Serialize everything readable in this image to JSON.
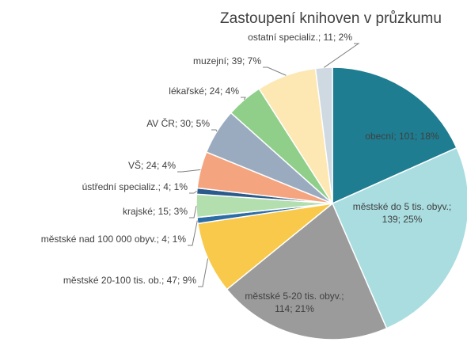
{
  "chart_data": {
    "type": "pie",
    "title": "Zastoupení knihoven v průzkumu",
    "values": [
      101,
      139,
      114,
      47,
      4,
      15,
      4,
      24,
      30,
      24,
      39,
      11
    ],
    "value_labels": [
      "obecní; 101; 18%",
      "městské do 5 tis. obyv.; 139; 25%",
      "městské 5-20 tis. obyv.; 114; 21%",
      "městské 20-100 tis. ob.; 47; 9%",
      "městské nad 100 000 obyv.; 4; 1%",
      "krajské; 15; 3%",
      "ústřední specializ.; 4; 1%",
      "VŠ; 24; 4%",
      "AV ČR; 30; 5%",
      "lékařské; 24; 4%",
      "muzejní; 39; 7%",
      "ostatní specializ.; 11; 2%"
    ],
    "colors": [
      "#1e7d91",
      "#a9dde0",
      "#9b9b9b",
      "#f8c94a",
      "#2e6ea6",
      "#b3deae",
      "#2b5b8c",
      "#f4a580",
      "#9aabc0",
      "#8fcf8a",
      "#fde8b4",
      "#cfd9e2"
    ]
  }
}
